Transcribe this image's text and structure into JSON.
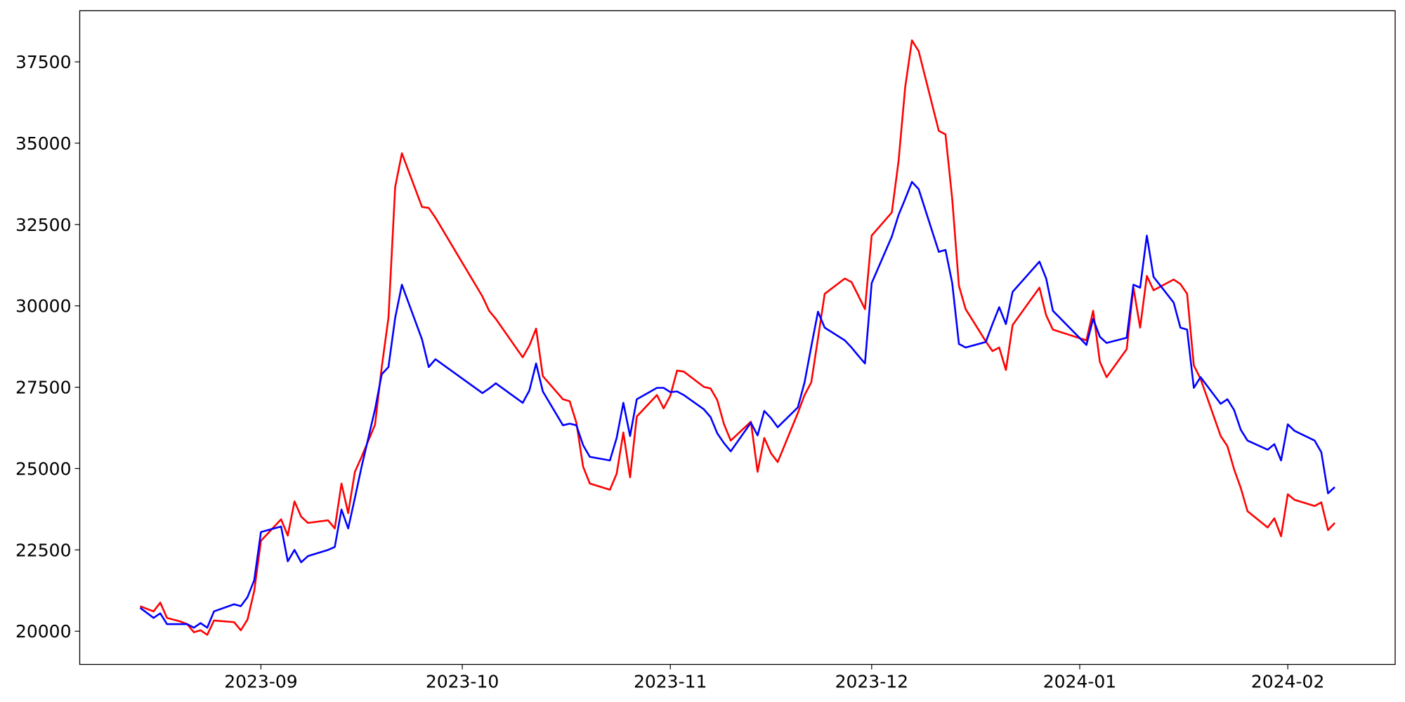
{
  "chart_data": {
    "type": "line",
    "x": [
      "2023-08-14",
      "2023-08-16",
      "2023-08-17",
      "2023-08-18",
      "2023-08-20",
      "2023-08-21",
      "2023-08-22",
      "2023-08-23",
      "2023-08-24",
      "2023-08-25",
      "2023-08-28",
      "2023-08-29",
      "2023-08-30",
      "2023-08-31",
      "2023-09-01",
      "2023-09-04",
      "2023-09-05",
      "2023-09-06",
      "2023-09-07",
      "2023-09-08",
      "2023-09-11",
      "2023-09-12",
      "2023-09-13",
      "2023-09-14",
      "2023-09-15",
      "2023-09-16",
      "2023-09-18",
      "2023-09-19",
      "2023-09-20",
      "2023-09-21",
      "2023-09-22",
      "2023-09-25",
      "2023-09-26",
      "2023-09-27",
      "2023-10-04",
      "2023-10-05",
      "2023-10-06",
      "2023-10-10",
      "2023-10-11",
      "2023-10-12",
      "2023-10-13",
      "2023-10-16",
      "2023-10-17",
      "2023-10-18",
      "2023-10-19",
      "2023-10-20",
      "2023-10-23",
      "2023-10-24",
      "2023-10-25",
      "2023-10-26",
      "2023-10-27",
      "2023-10-30",
      "2023-10-31",
      "2023-11-01",
      "2023-11-02",
      "2023-11-03",
      "2023-11-06",
      "2023-11-07",
      "2023-11-08",
      "2023-11-09",
      "2023-11-10",
      "2023-11-13",
      "2023-11-14",
      "2023-11-15",
      "2023-11-16",
      "2023-11-17",
      "2023-11-20",
      "2023-11-21",
      "2023-11-22",
      "2023-11-23",
      "2023-11-24",
      "2023-11-27",
      "2023-11-28",
      "2023-11-29",
      "2023-11-30",
      "2023-12-01",
      "2023-12-04",
      "2023-12-05",
      "2023-12-06",
      "2023-12-07",
      "2023-12-08",
      "2023-12-11",
      "2023-12-12",
      "2023-12-13",
      "2023-12-14",
      "2023-12-15",
      "2023-12-18",
      "2023-12-19",
      "2023-12-20",
      "2023-12-21",
      "2023-12-22",
      "2023-12-26",
      "2023-12-27",
      "2023-12-28",
      "2024-01-02",
      "2024-01-03",
      "2024-01-04",
      "2024-01-05",
      "2024-01-08",
      "2024-01-09",
      "2024-01-10",
      "2024-01-11",
      "2024-01-12",
      "2024-01-15",
      "2024-01-16",
      "2024-01-17",
      "2024-01-18",
      "2024-01-19",
      "2024-01-22",
      "2024-01-23",
      "2024-01-24",
      "2024-01-25",
      "2024-01-26",
      "2024-01-29",
      "2024-01-30",
      "2024-01-31",
      "2024-02-01",
      "2024-02-02",
      "2024-02-05",
      "2024-02-06",
      "2024-02-07",
      "2024-02-08"
    ],
    "series": [
      {
        "color": "#ff0000",
        "values": [
          20770,
          20610,
          20880,
          20410,
          20300,
          20220,
          19970,
          20030,
          19890,
          20330,
          20280,
          20030,
          20360,
          21240,
          22780,
          23440,
          22940,
          23990,
          23520,
          23330,
          23410,
          23160,
          24540,
          23630,
          24900,
          25360,
          26350,
          28120,
          29630,
          33650,
          34690,
          33040,
          33010,
          32710,
          30290,
          29850,
          29600,
          28420,
          28780,
          29300,
          27840,
          27130,
          27070,
          26410,
          25060,
          24540,
          24350,
          24840,
          26110,
          24730,
          26600,
          27260,
          26850,
          27240,
          28010,
          27980,
          27510,
          27460,
          27100,
          26360,
          25860,
          26440,
          24900,
          25940,
          25470,
          25200,
          26710,
          27260,
          27650,
          29000,
          30370,
          30840,
          30730,
          30320,
          29900,
          32160,
          32870,
          34440,
          36730,
          38160,
          37830,
          35380,
          35270,
          33290,
          30620,
          29900,
          28910,
          28610,
          28720,
          28030,
          29410,
          30560,
          29710,
          29270,
          28940,
          29850,
          28280,
          27810,
          28670,
          30560,
          29330,
          30920,
          30480,
          30810,
          30670,
          30370,
          28170,
          27760,
          26000,
          25690,
          24980,
          24400,
          23690,
          23190,
          23470,
          22920,
          24210,
          24040,
          23850,
          23960,
          23110,
          23330
        ]
      },
      {
        "color": "#0000ff",
        "values": [
          20720,
          20410,
          20550,
          20220,
          20220,
          20220,
          20110,
          20250,
          20110,
          20610,
          20830,
          20770,
          21050,
          21570,
          23050,
          23220,
          22150,
          22500,
          22120,
          22310,
          22500,
          22590,
          23740,
          23160,
          24100,
          25060,
          26820,
          27900,
          28120,
          29630,
          30650,
          28970,
          28120,
          28360,
          27320,
          27460,
          27620,
          27020,
          27400,
          28230,
          27370,
          26330,
          26380,
          26330,
          25720,
          25360,
          25250,
          25940,
          27020,
          26000,
          27130,
          27480,
          27480,
          27350,
          27370,
          27260,
          26820,
          26580,
          26080,
          25780,
          25530,
          26410,
          26020,
          26770,
          26550,
          26270,
          26880,
          27650,
          28750,
          29820,
          29330,
          28940,
          28720,
          28470,
          28230,
          30700,
          32130,
          32790,
          33290,
          33810,
          33590,
          31660,
          31720,
          30700,
          28830,
          28720,
          28890,
          29440,
          29960,
          29440,
          30430,
          31360,
          30840,
          29850,
          28800,
          29600,
          29050,
          28860,
          29020,
          30650,
          30560,
          32160,
          30890,
          30100,
          29330,
          29270,
          27480,
          27810,
          26990,
          27130,
          26800,
          26190,
          25860,
          25580,
          25750,
          25250,
          26360,
          26160,
          25860,
          25500,
          24240,
          24430
        ]
      }
    ],
    "xlim": [
      "2023-08-05",
      "2024-02-17"
    ],
    "xticks": [
      {
        "value": "2023-09-01",
        "label": "2023-09"
      },
      {
        "value": "2023-10-01",
        "label": "2023-10"
      },
      {
        "value": "2023-11-01",
        "label": "2023-11"
      },
      {
        "value": "2023-12-01",
        "label": "2023-12"
      },
      {
        "value": "2024-01-01",
        "label": "2024-01"
      },
      {
        "value": "2024-02-01",
        "label": "2024-02"
      }
    ],
    "ylim": [
      18980,
      39070
    ],
    "yticks": [
      20000,
      22500,
      25000,
      27500,
      30000,
      32500,
      35000,
      37500
    ],
    "grid": false
  }
}
